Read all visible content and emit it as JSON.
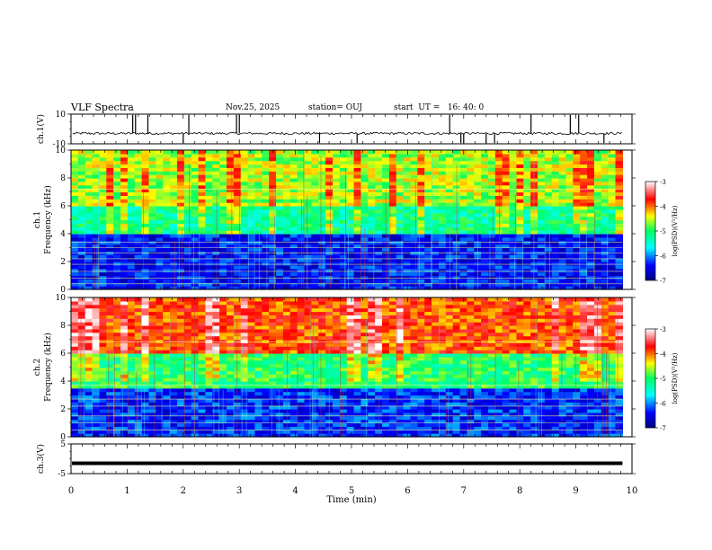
{
  "header": {
    "title": "VLF Spectra",
    "date": "Nov.25, 2025",
    "station": "station= OUJ",
    "start": "start  UT =   16: 40: 0"
  },
  "chart_data": [
    {
      "type": "line",
      "panel": "ch1-waveform",
      "ylabel": "ch.1(V)",
      "ylim": [
        -10,
        10
      ],
      "ytick_labels": [
        "-10",
        "10"
      ],
      "xlim": [
        0,
        10
      ],
      "baseline": -3,
      "spikes_min": [
        1.1,
        1.15,
        1.37,
        2.0,
        2.1,
        2.95,
        3.0,
        4.43,
        5.1,
        6.75,
        6.95,
        7.0,
        7.4,
        7.55,
        8.2,
        8.9,
        9.05,
        9.5
      ],
      "grid": false
    },
    {
      "type": "heatmap",
      "panel": "ch1-spectrogram",
      "ylabel": "ch.1\nFrequency  (kHz)",
      "ylim": [
        0,
        10
      ],
      "ytick_labels": [
        "0",
        "2",
        "4",
        "6",
        "8",
        "10"
      ],
      "xlim": [
        0,
        10
      ],
      "data_extent_min": 9.83,
      "colorbar": {
        "label": "log(PSD)(V²/Hz)",
        "range": [
          -7,
          -3
        ],
        "tick_labels": [
          "-7",
          "-6",
          "-5",
          "-4",
          "-3"
        ]
      },
      "bands_khz": [
        {
          "f_range": [
            0,
            4
          ],
          "level": -6.4
        },
        {
          "f_range": [
            4,
            6
          ],
          "level": -5.2
        },
        {
          "f_range": [
            6,
            10
          ],
          "level": -4.6
        }
      ],
      "lines_khz": [
        0.4,
        0.8,
        1.3,
        1.8,
        2.2,
        2.6,
        3.0,
        3.4,
        7.2
      ]
    },
    {
      "type": "heatmap",
      "panel": "ch2-spectrogram",
      "ylabel": "ch.2\nFrequency  (kHz)",
      "ylim": [
        0,
        10
      ],
      "ytick_labels": [
        "0",
        "2",
        "4",
        "6",
        "8",
        "10"
      ],
      "xlim": [
        0,
        10
      ],
      "data_extent_min": 9.83,
      "colorbar": {
        "label": "log(PSD)(V²/Hz)",
        "range": [
          -7,
          -3
        ],
        "tick_labels": [
          "-7",
          "-6",
          "-5",
          "-4",
          "-3"
        ]
      },
      "bands_khz": [
        {
          "f_range": [
            0,
            3.5
          ],
          "level": -6.3
        },
        {
          "f_range": [
            3.5,
            6
          ],
          "level": -5.0
        },
        {
          "f_range": [
            6,
            10
          ],
          "level": -3.9
        }
      ],
      "lines_khz": [
        0.5,
        1.0,
        1.5,
        2.2,
        2.7,
        3.7,
        6.8
      ]
    },
    {
      "type": "line",
      "panel": "ch3-waveform",
      "ylabel": "ch.3(V)",
      "ylim": [
        -5,
        5
      ],
      "ytick_labels": [
        "-5",
        "5"
      ],
      "xlim": [
        0,
        10
      ],
      "value": -1.5,
      "xlabel": "Time  (min)",
      "xtick_labels": [
        "0",
        "1",
        "2",
        "3",
        "4",
        "5",
        "6",
        "7",
        "8",
        "9",
        "10"
      ],
      "grid": false
    }
  ]
}
